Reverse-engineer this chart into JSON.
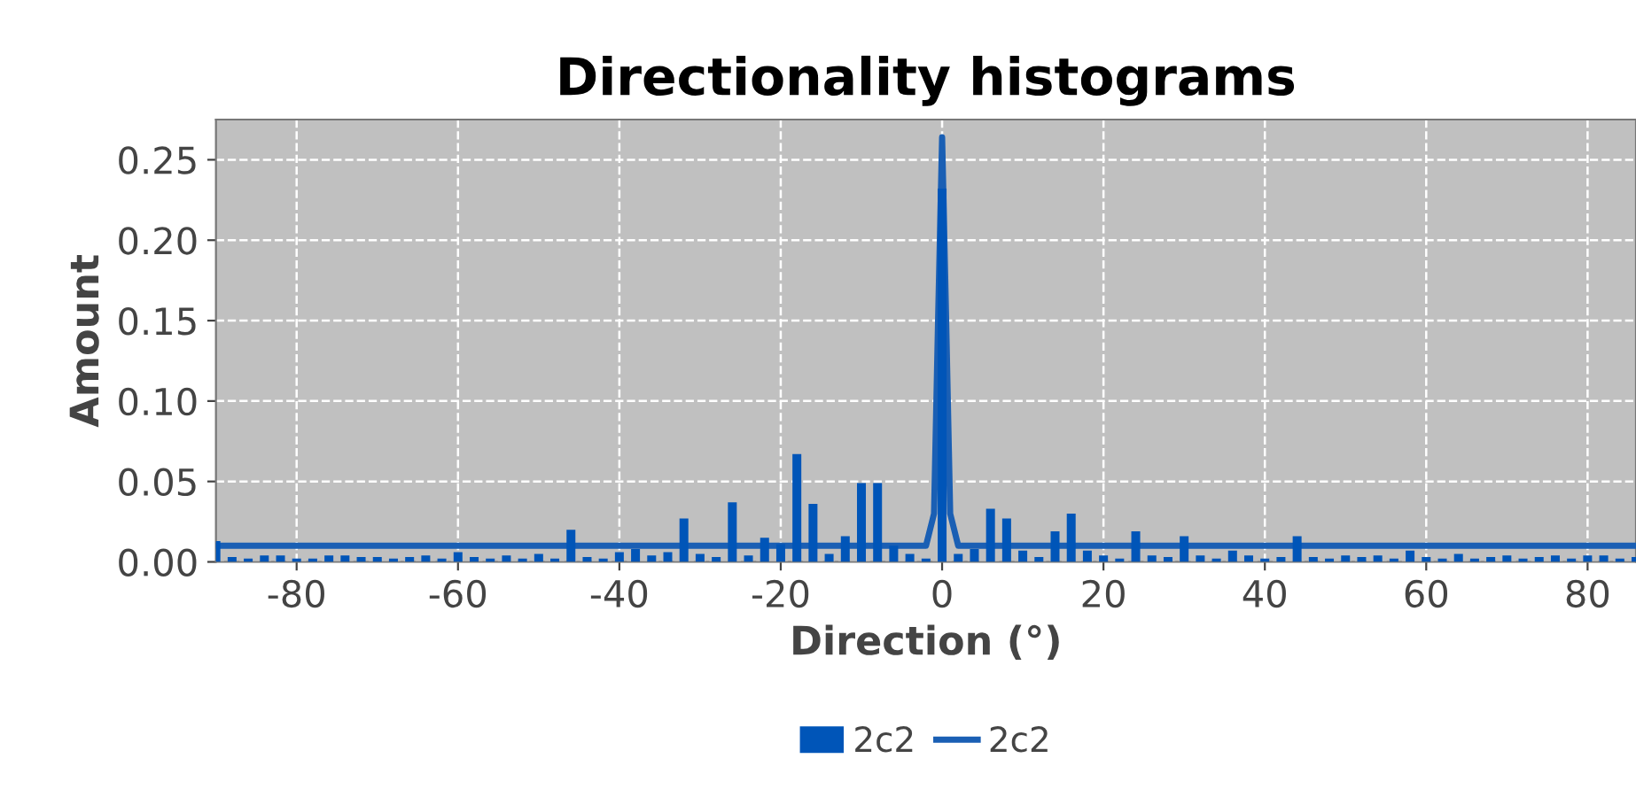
{
  "chart_data": {
    "type": "bar",
    "title": "Directionality histograms",
    "xlabel": "Direction (°)",
    "ylabel": "Amount",
    "xlim": [
      -90,
      86
    ],
    "ylim": [
      0,
      0.275
    ],
    "xticks": [
      -80,
      -60,
      -40,
      -20,
      0,
      20,
      40,
      60,
      80
    ],
    "yticks": [
      {
        "value": 0,
        "label": "0.00"
      },
      {
        "value": 0.05,
        "label": "0.05"
      },
      {
        "value": 0.1,
        "label": "0.10"
      },
      {
        "value": 0.15,
        "label": "0.15"
      },
      {
        "value": 0.2,
        "label": "0.20"
      },
      {
        "value": 0.25,
        "label": "0.25"
      }
    ],
    "grid": true,
    "legend": "bottom",
    "series": [
      {
        "name": "2c2",
        "color": "#0055b8",
        "x": [
          -90,
          -88,
          -86,
          -84,
          -82,
          -80,
          -78,
          -76,
          -74,
          -72,
          -70,
          -68,
          -66,
          -64,
          -62,
          -60,
          -58,
          -56,
          -54,
          -52,
          -50,
          -48,
          -46,
          -44,
          -42,
          -40,
          -38,
          -36,
          -34,
          -32,
          -30,
          -28,
          -26,
          -24,
          -22,
          -20,
          -18,
          -16,
          -14,
          -12,
          -10,
          -8,
          -6,
          -4,
          -2,
          0,
          2,
          4,
          6,
          8,
          10,
          12,
          14,
          16,
          18,
          20,
          22,
          24,
          26,
          28,
          30,
          32,
          34,
          36,
          38,
          40,
          42,
          44,
          46,
          48,
          50,
          52,
          54,
          56,
          58,
          60,
          62,
          64,
          66,
          68,
          70,
          72,
          74,
          76,
          78,
          80,
          82,
          84,
          86
        ],
        "values": [
          0.013,
          0.003,
          0.002,
          0.004,
          0.004,
          0.002,
          0.002,
          0.004,
          0.004,
          0.003,
          0.003,
          0.002,
          0.003,
          0.004,
          0.002,
          0.006,
          0.003,
          0.002,
          0.004,
          0.002,
          0.005,
          0.002,
          0.02,
          0.003,
          0.002,
          0.006,
          0.008,
          0.004,
          0.006,
          0.027,
          0.005,
          0.003,
          0.037,
          0.004,
          0.015,
          0.011,
          0.067,
          0.036,
          0.005,
          0.016,
          0.049,
          0.049,
          0.01,
          0.005,
          0.002,
          0.232,
          0.005,
          0.008,
          0.033,
          0.027,
          0.007,
          0.003,
          0.019,
          0.03,
          0.007,
          0.004,
          0.002,
          0.019,
          0.004,
          0.003,
          0.016,
          0.004,
          0.002,
          0.007,
          0.004,
          0.002,
          0.003,
          0.016,
          0.003,
          0.002,
          0.004,
          0.003,
          0.004,
          0.002,
          0.007,
          0.003,
          0.002,
          0.005,
          0.002,
          0.003,
          0.004,
          0.002,
          0.003,
          0.004,
          0.002,
          0.004,
          0.004,
          0.002,
          0.003
        ]
      },
      {
        "type": "line",
        "name": "2c2",
        "color": "#1a5fb4",
        "x": [
          -90,
          -2,
          -1,
          -0.5,
          0,
          0.5,
          1,
          2,
          86
        ],
        "values": [
          0.01,
          0.01,
          0.03,
          0.15,
          0.264,
          0.15,
          0.03,
          0.01,
          0.01
        ]
      }
    ]
  }
}
